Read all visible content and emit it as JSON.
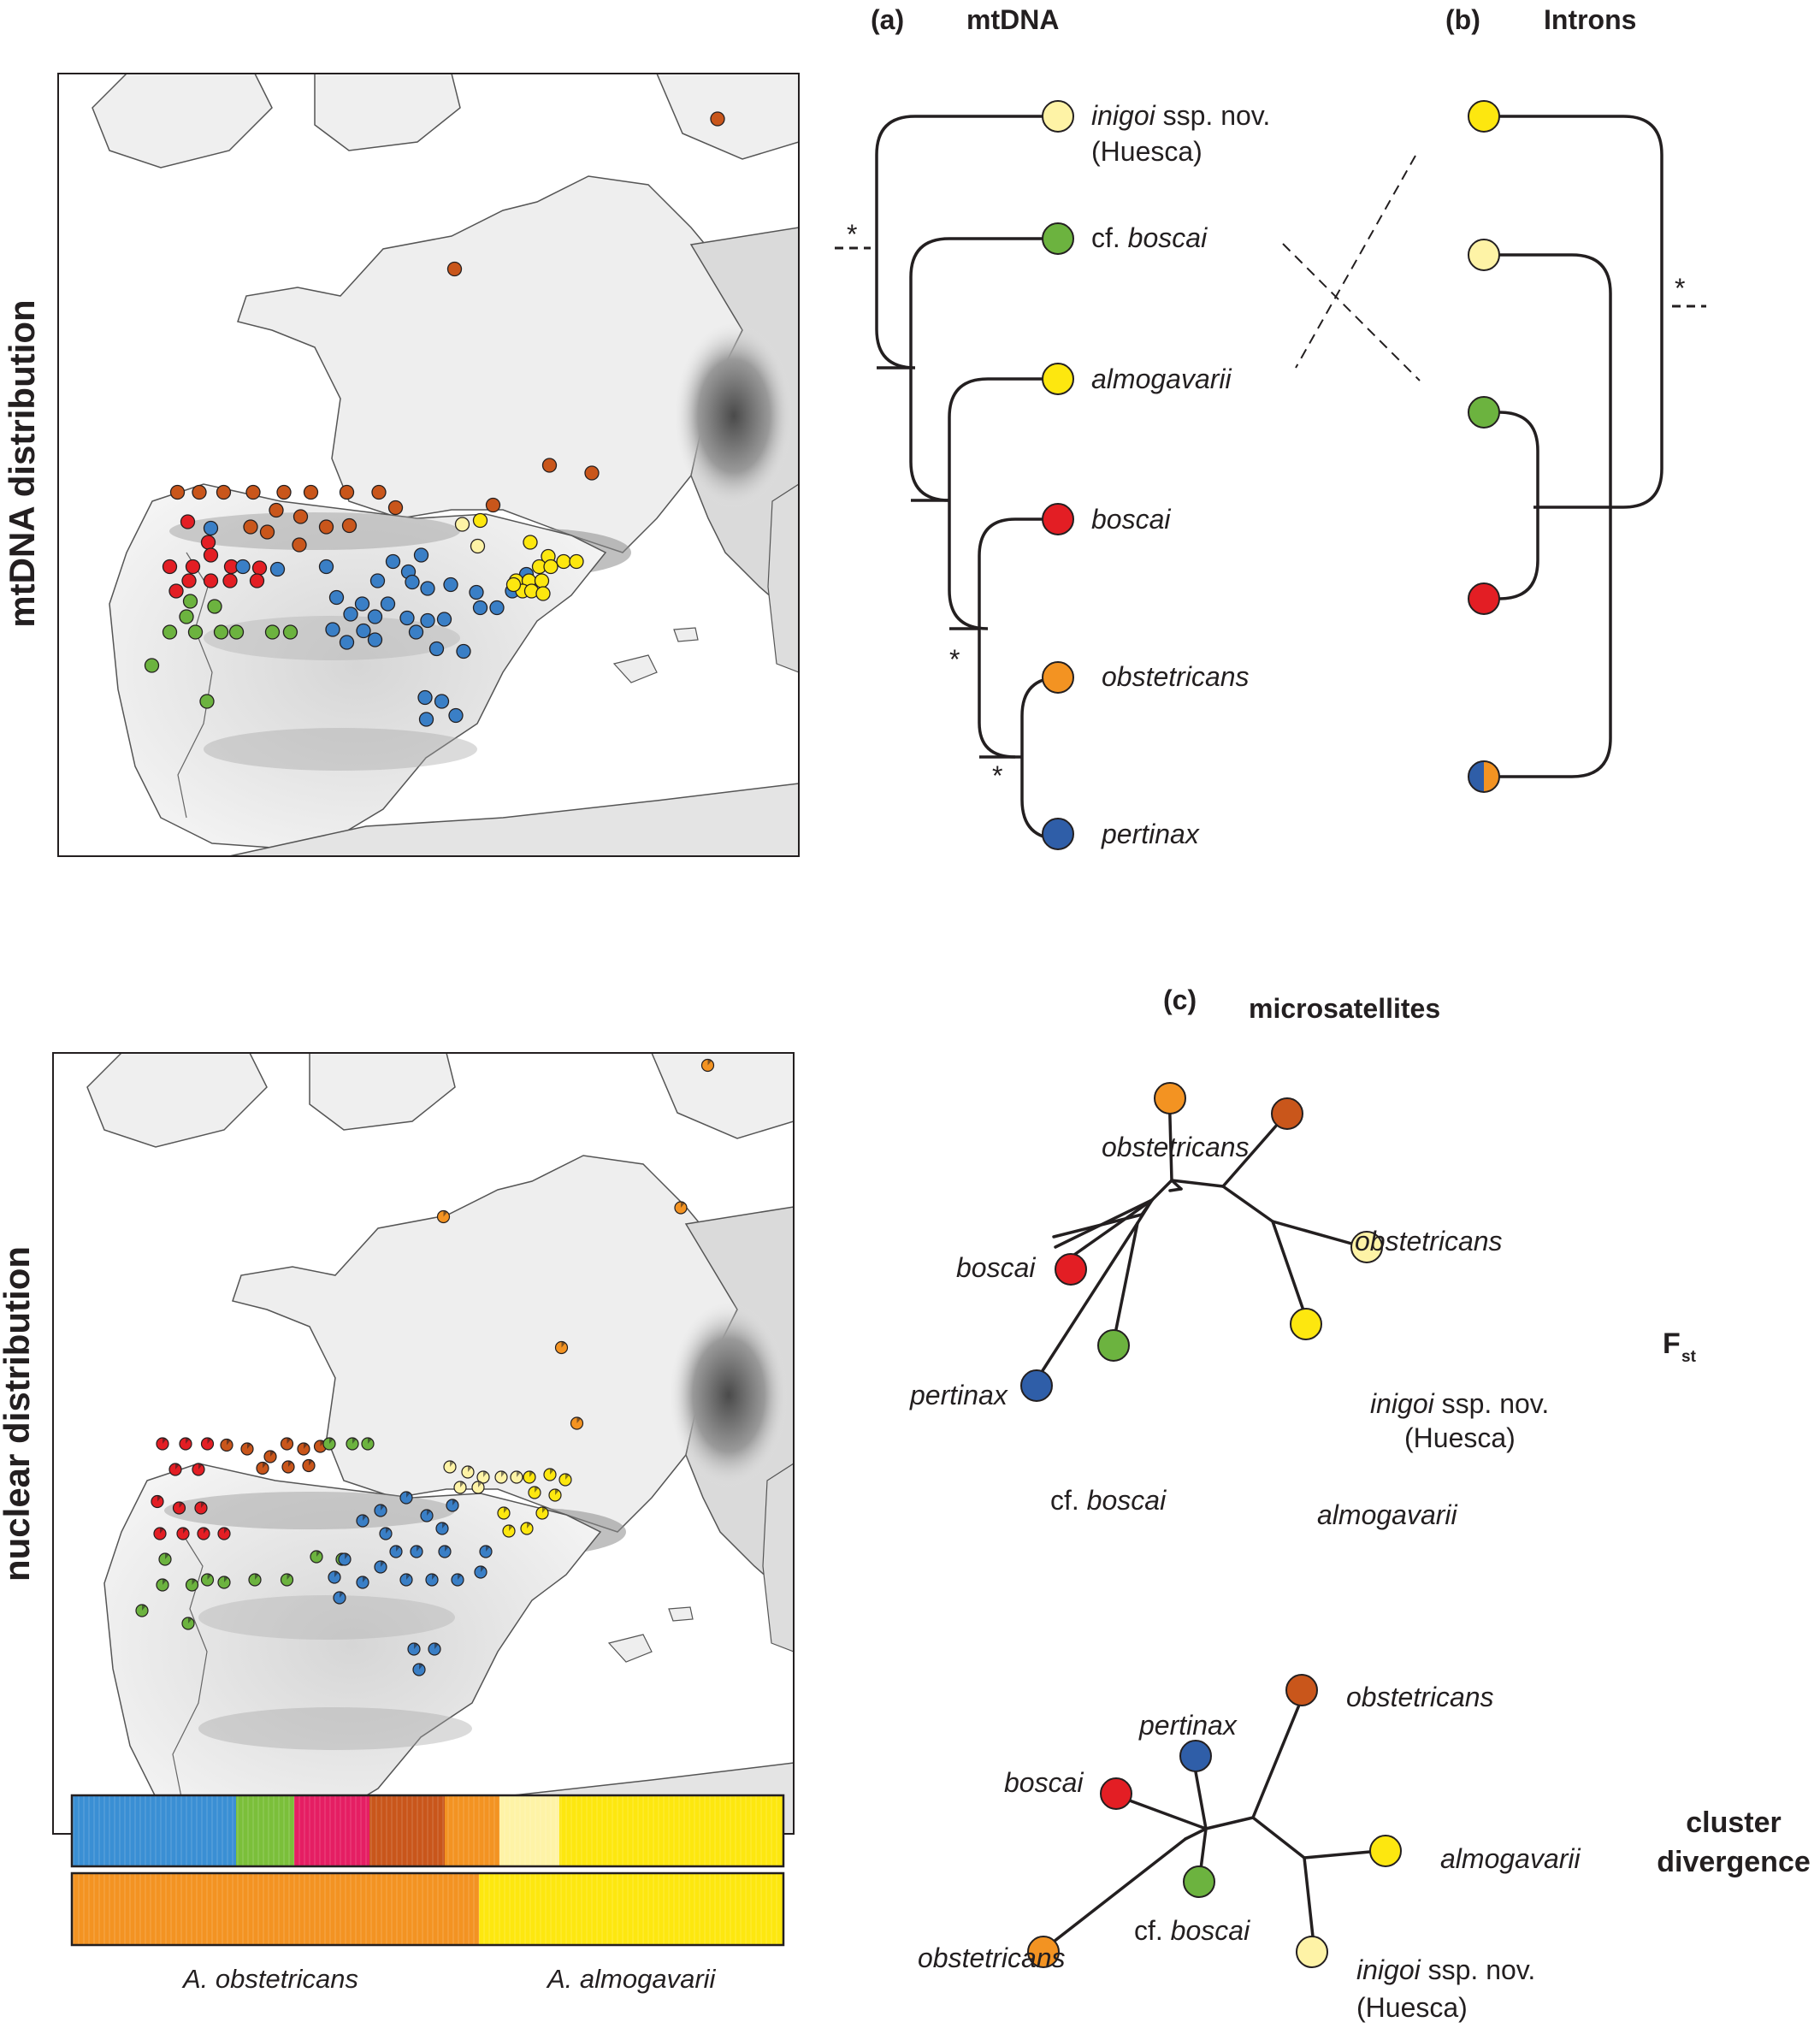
{
  "colors": {
    "inigoi": "#fef3a6",
    "cf_boscai": "#6cb33f",
    "almogavarii": "#fde70f",
    "boscai": "#e31e24",
    "obstetricans_light": "#f39322",
    "obstetricans_dark": "#c9561b",
    "pertinax": "#2f5ea8",
    "pertinax_map": "#3a7fc6",
    "pink": "#e51e63"
  },
  "row_labels": {
    "mtdna": "mtDNA distribution",
    "nuclear": "nuclear distribution"
  },
  "panel_a": {
    "label": "(a)",
    "title": "mtDNA",
    "support_mark": "*",
    "taxa": {
      "inigoi_name": "inigoi",
      "inigoi_rest": " ssp. nov.",
      "inigoi_loc": "(Huesca)",
      "cf_prefix": "cf. ",
      "cf_name": "boscai",
      "almogavarii": "almogavarii",
      "boscai": "boscai",
      "obstetricans": "obstetricans",
      "pertinax": "pertinax"
    }
  },
  "panel_b": {
    "label": "(b)",
    "title": "Introns",
    "support_mark": "*"
  },
  "panel_c": {
    "label": "(c)",
    "title": "microsatellites",
    "fst_main": "F",
    "fst_sub": "st",
    "cluster_line1": "cluster",
    "cluster_line2": "divergence",
    "fst_tips": {
      "obstetricans_top": "obstetricans",
      "obstetricans_right": "obstetricans",
      "boscai": "boscai",
      "pertinax": "pertinax",
      "cf_prefix": "cf. ",
      "cf_name": "boscai",
      "inigoi_name": "inigoi",
      "inigoi_rest": " ssp. nov.",
      "inigoi_loc": "(Huesca)",
      "almogavarii": "almogavarii"
    },
    "cluster_tips": {
      "obstetricans_top": "obstetricans",
      "pertinax": "pertinax",
      "boscai": "boscai",
      "almogavarii": "almogavarii",
      "obstetricans_bottom": "obstetricans",
      "cf_prefix": "cf. ",
      "cf_name": "boscai",
      "inigoi_name": "inigoi",
      "inigoi_rest": " ssp. nov.",
      "inigoi_loc": "(Huesca)"
    }
  },
  "structure_labels": {
    "left": "A. obstetricans",
    "right": "A. almogavarii"
  }
}
